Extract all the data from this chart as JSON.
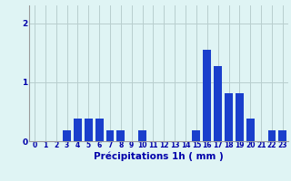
{
  "hours": [
    0,
    1,
    2,
    3,
    4,
    5,
    6,
    7,
    8,
    9,
    10,
    11,
    12,
    13,
    14,
    15,
    16,
    17,
    18,
    19,
    20,
    21,
    22,
    23
  ],
  "values": [
    0,
    0,
    0,
    0.18,
    0.38,
    0.38,
    0.38,
    0.18,
    0.18,
    0,
    0.18,
    0,
    0,
    0,
    0,
    0.18,
    1.55,
    1.28,
    0.82,
    0.82,
    0.38,
    0,
    0.18,
    0.18
  ],
  "bar_color": "#1a3fcc",
  "bg_color": "#dff4f4",
  "grid_color": "#b8cece",
  "axis_label_color": "#0000aa",
  "xlabel": "Précipitations 1h ( mm )",
  "xlabel_fontsize": 7.5,
  "tick_fontsize": 5.5,
  "ytick_fontsize": 6.5,
  "yticks": [
    0,
    1,
    2
  ],
  "ylim": [
    0,
    2.3
  ],
  "xlim": [
    -0.5,
    23.5
  ],
  "bar_width": 0.75
}
